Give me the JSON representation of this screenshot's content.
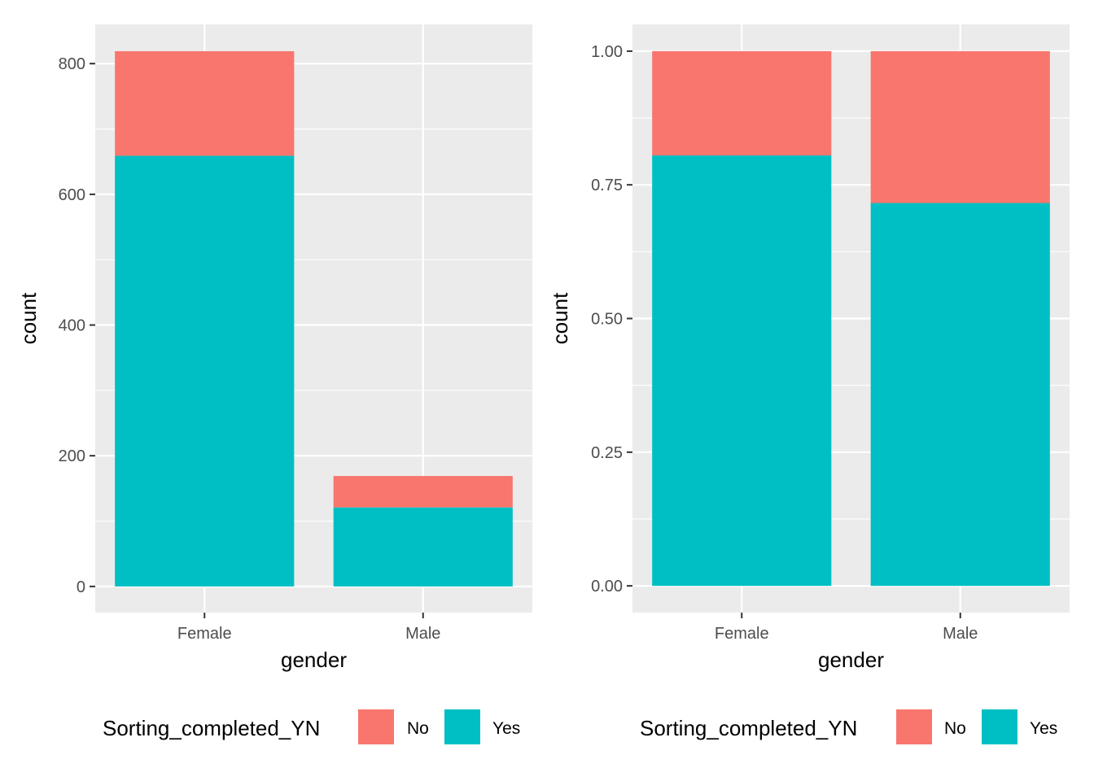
{
  "chart_data": [
    {
      "type": "bar",
      "stacked": true,
      "categories": [
        "Female",
        "Male"
      ],
      "series": [
        {
          "name": "No",
          "values": [
            160,
            48
          ],
          "color": "#F8766D"
        },
        {
          "name": "Yes",
          "values": [
            659,
            121
          ],
          "color": "#00BFC4"
        }
      ],
      "xlabel": "gender",
      "ylabel": "count",
      "ylim": [
        -40,
        860
      ],
      "yticks": [
        0,
        200,
        400,
        600,
        800
      ],
      "ytick_labels": [
        "0",
        "200",
        "400",
        "600",
        "800"
      ],
      "grid": true,
      "legend": {
        "title": "Sorting_completed_YN",
        "position": "bottom",
        "labels": [
          "No",
          "Yes"
        ]
      }
    },
    {
      "type": "bar",
      "stacked": true,
      "normalized": true,
      "categories": [
        "Female",
        "Male"
      ],
      "series": [
        {
          "name": "No",
          "values": [
            0.195,
            0.284
          ],
          "color": "#F8766D"
        },
        {
          "name": "Yes",
          "values": [
            0.805,
            0.716
          ],
          "color": "#00BFC4"
        }
      ],
      "xlabel": "gender",
      "ylabel": "count",
      "ylim": [
        -0.05,
        1.05
      ],
      "yticks": [
        0.0,
        0.25,
        0.5,
        0.75,
        1.0
      ],
      "ytick_labels": [
        "0.00",
        "0.25",
        "0.50",
        "0.75",
        "1.00"
      ],
      "grid": true,
      "legend": {
        "title": "Sorting_completed_YN",
        "position": "bottom",
        "labels": [
          "No",
          "Yes"
        ]
      }
    }
  ],
  "colors": {
    "panel_bg": "#EBEBEB",
    "grid": "#FFFFFF",
    "no": "#F8766D",
    "yes": "#00BFC4"
  }
}
